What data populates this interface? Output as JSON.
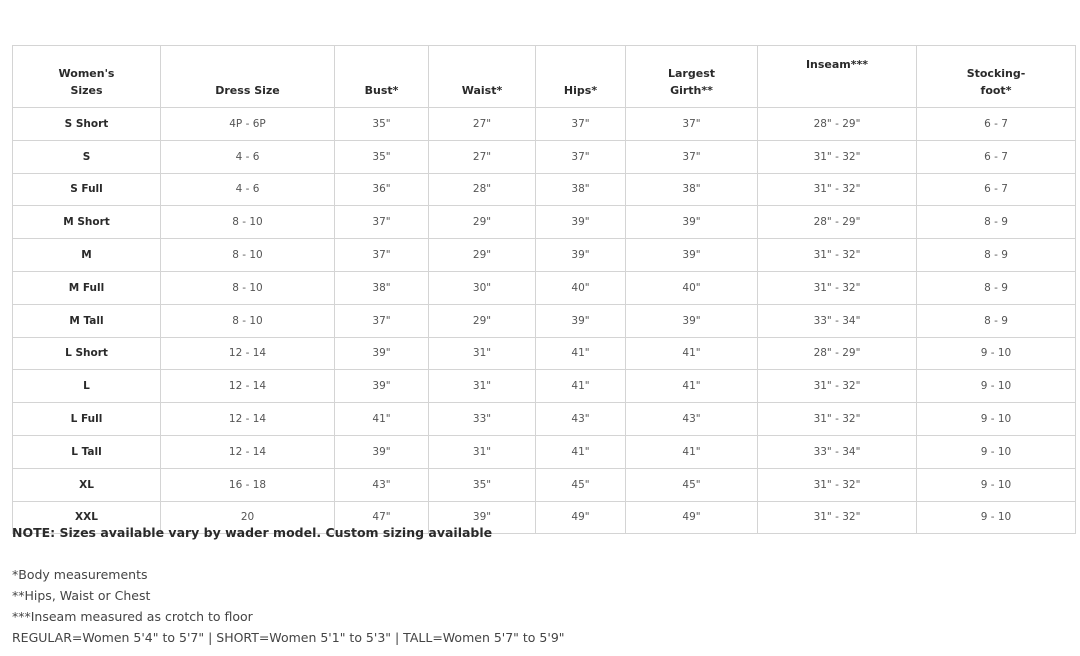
{
  "headers": [
    "Women's\nSizes",
    "Dress Size",
    "Bust*",
    "Waist*",
    "Hips*",
    "Largest\nGirth**",
    "Inseam***",
    "Stocking-\nfoot*"
  ],
  "rows": [
    [
      "S Short",
      "4P - 6P",
      "35\"",
      "27\"",
      "37\"",
      "37\"",
      "28\" - 29\"",
      "6 - 7"
    ],
    [
      "S",
      "4 - 6",
      "35\"",
      "27\"",
      "37\"",
      "37\"",
      "31\" - 32\"",
      "6 - 7"
    ],
    [
      "S Full",
      "4 - 6",
      "36\"",
      "28\"",
      "38\"",
      "38\"",
      "31\" - 32\"",
      "6 - 7"
    ],
    [
      "M Short",
      "8 - 10",
      "37\"",
      "29\"",
      "39\"",
      "39\"",
      "28\" - 29\"",
      "8 - 9"
    ],
    [
      "M",
      "8 - 10",
      "37\"",
      "29\"",
      "39\"",
      "39\"",
      "31\" - 32\"",
      "8 - 9"
    ],
    [
      "M Full",
      "8 - 10",
      "38\"",
      "30\"",
      "40\"",
      "40\"",
      "31\" - 32\"",
      "8 - 9"
    ],
    [
      "M Tall",
      "8 - 10",
      "37\"",
      "29\"",
      "39\"",
      "39\"",
      "33\" - 34\"",
      "8 - 9"
    ],
    [
      "L Short",
      "12 - 14",
      "39\"",
      "31\"",
      "41\"",
      "41\"",
      "28\" - 29\"",
      "9 - 10"
    ],
    [
      "L",
      "12 - 14",
      "39\"",
      "31\"",
      "41\"",
      "41\"",
      "31\" - 32\"",
      "9 - 10"
    ],
    [
      "L Full",
      "12 - 14",
      "41\"",
      "33\"",
      "43\"",
      "43\"",
      "31\" - 32\"",
      "9 - 10"
    ],
    [
      "L Tall",
      "12 - 14",
      "39\"",
      "31\"",
      "41\"",
      "41\"",
      "33\" - 34\"",
      "9 - 10"
    ],
    [
      "XL",
      "16 - 18",
      "43\"",
      "35\"",
      "45\"",
      "45\"",
      "31\" - 32\"",
      "9 - 10"
    ],
    [
      "XXL",
      "20",
      "47\"",
      "39\"",
      "49\"",
      "49\"",
      "31\" - 32\"",
      "9 - 10"
    ]
  ],
  "note": "NOTE: Sizes available vary by wader model. Custom sizing available",
  "footnotes": [
    "*Body measurements",
    "**Hips, Waist or Chest",
    "***Inseam measured as crotch to floor",
    "REGULAR=Women 5'4\" to 5'7\" | SHORT=Women 5'1\" to 5'3\" | TALL=Women 5'7\" to 5'9\""
  ]
}
